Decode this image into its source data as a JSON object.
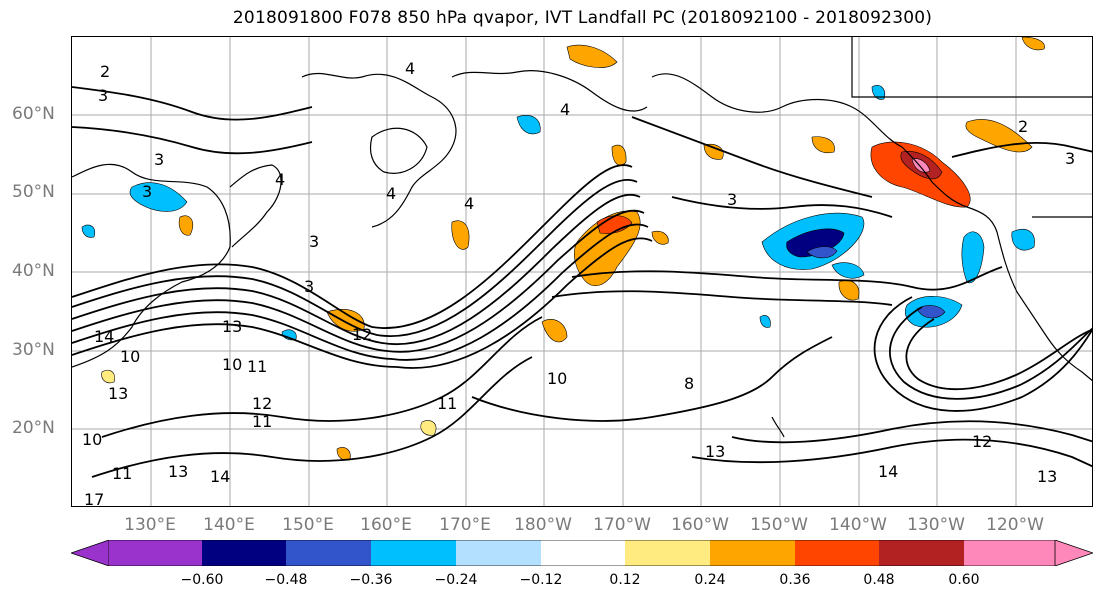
{
  "title": "2018091800 F078 850 hPa qvapor, IVT Landfall PC (2018092100 - 2018092300)",
  "lat_labels": [
    "60°N",
    "50°N",
    "40°N",
    "30°N",
    "20°N"
  ],
  "lon_labels": [
    "130°E",
    "140°E",
    "150°E",
    "160°E",
    "170°E",
    "180°W",
    "170°W",
    "160°W",
    "150°W",
    "140°W",
    "130°W",
    "120°W"
  ],
  "contour_labels": [
    "2",
    "4",
    "3",
    "4",
    "4",
    "3",
    "3",
    "4",
    "3",
    "4",
    "3",
    "2",
    "3",
    "3",
    "13",
    "10",
    "11",
    "12",
    "14",
    "13",
    "11",
    "10",
    "11",
    "8",
    "10",
    "12",
    "13",
    "14",
    "13",
    "12",
    "11",
    "10",
    "13",
    "14",
    "17"
  ],
  "colorbar": {
    "colors": [
      "#9933cc",
      "#000080",
      "#3355cc",
      "#00bfff",
      "#b3e0ff",
      "#ffffff",
      "#ffeb80",
      "#ffa500",
      "#ff4500",
      "#b22222",
      "#ff88bb"
    ],
    "tick_labels": [
      "−0.60",
      "−0.48",
      "−0.36",
      "−0.24",
      "−0.12",
      "0.12",
      "0.24",
      "0.36",
      "0.48",
      "0.60"
    ]
  },
  "colors": {
    "land_line": "#000000",
    "grid": "#aaaaaa",
    "axis_label": "#7a7a7a"
  }
}
